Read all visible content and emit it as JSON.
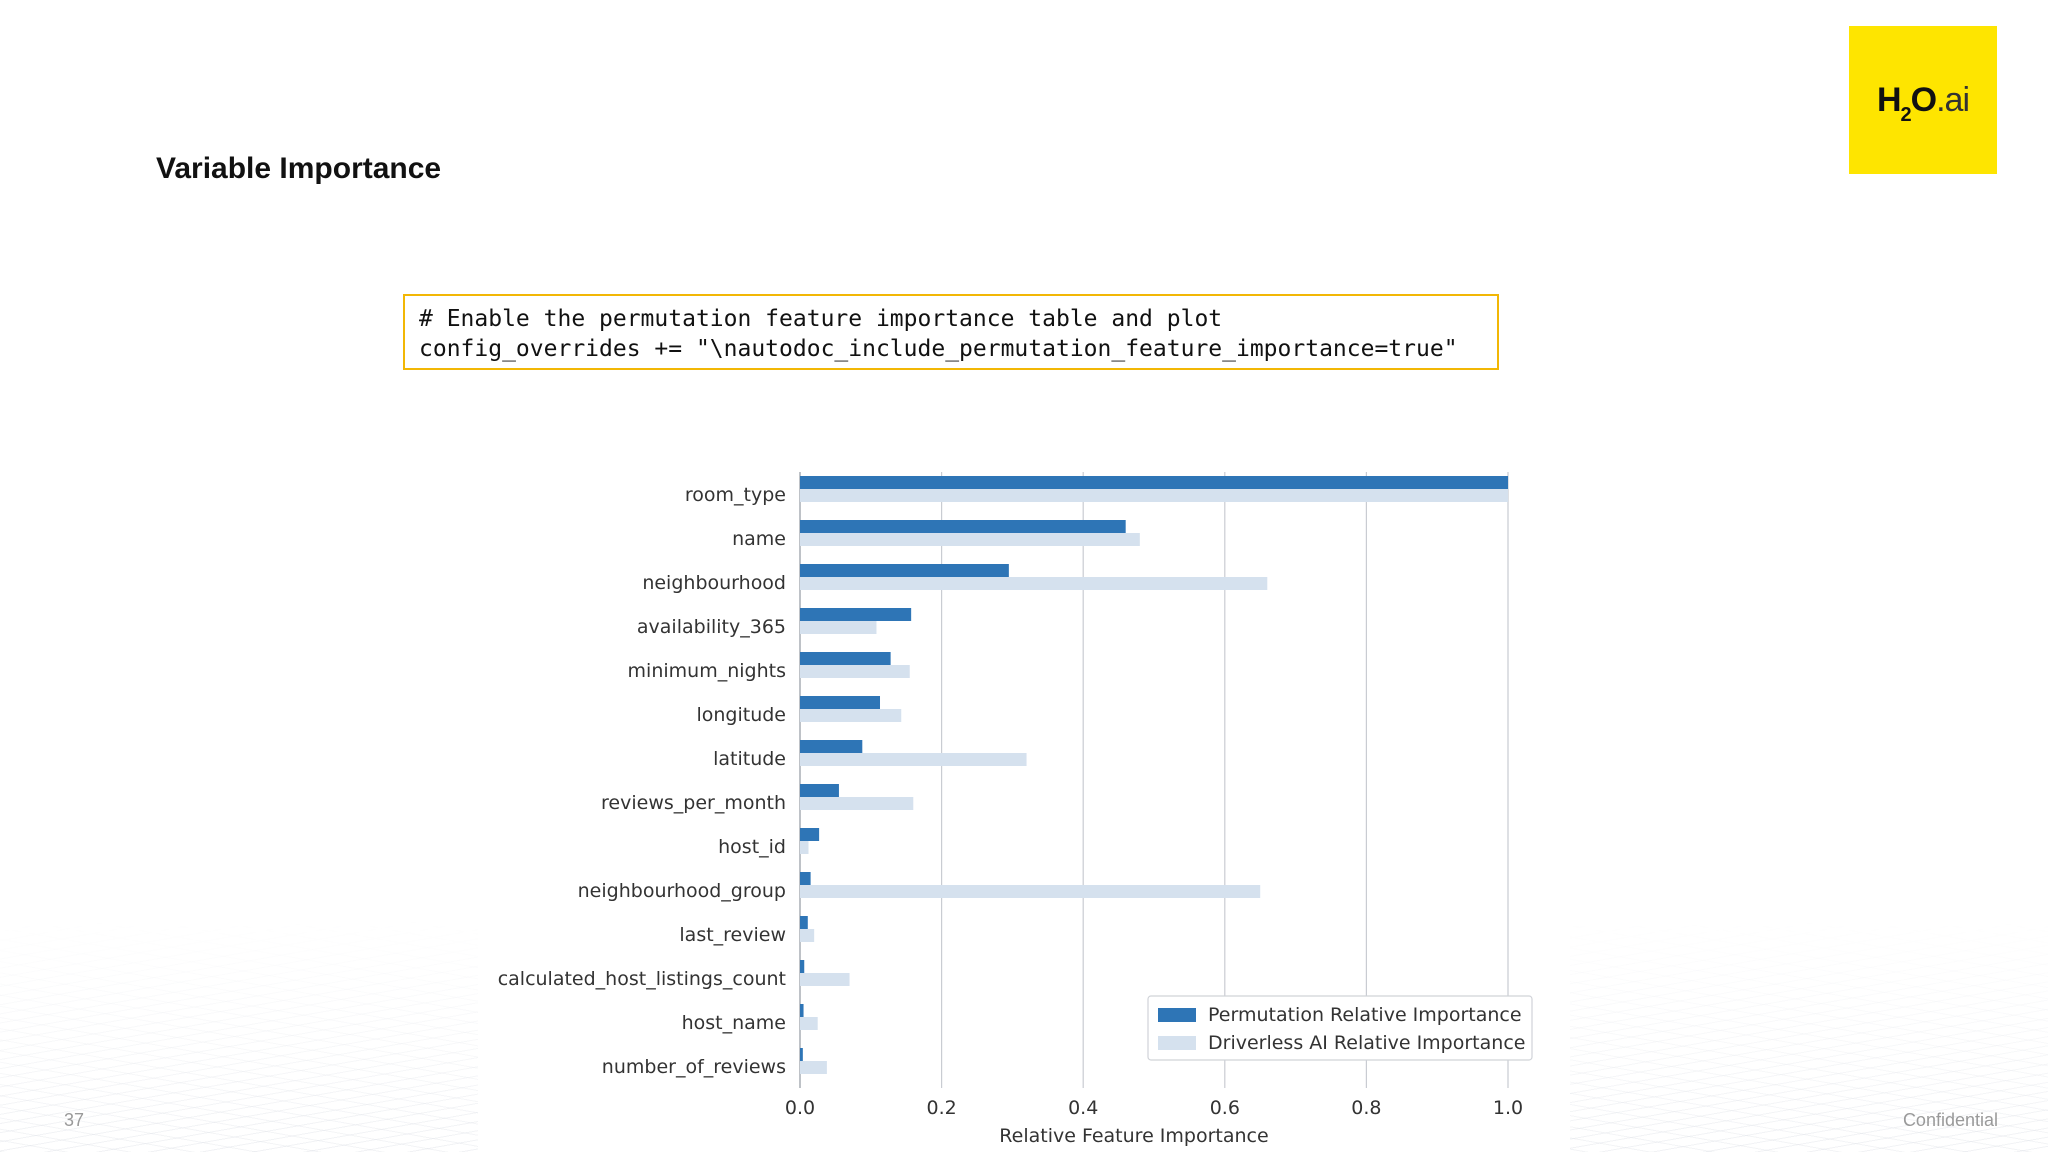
{
  "slide": {
    "title": "Variable Importance",
    "page_number": "37",
    "confidential": "Confidential",
    "logo": {
      "main": "H",
      "subscript": "2",
      "o": "O",
      "suffix": ".ai",
      "color": "#fee500"
    }
  },
  "code": {
    "line1": "# Enable the permutation feature importance table and plot",
    "line2": "config_overrides += \"\\nautodoc_include_permutation_feature_importance=true\"",
    "border_color": "#f2b705"
  },
  "chart_data": {
    "type": "bar",
    "orientation": "horizontal",
    "categories": [
      "room_type",
      "name",
      "neighbourhood",
      "availability_365",
      "minimum_nights",
      "longitude",
      "latitude",
      "reviews_per_month",
      "host_id",
      "neighbourhood_group",
      "last_review",
      "calculated_host_listings_count",
      "host_name",
      "number_of_reviews"
    ],
    "series": [
      {
        "name": "Permutation Relative Importance",
        "color": "#2e75b6",
        "values": [
          1.0,
          0.46,
          0.295,
          0.157,
          0.128,
          0.113,
          0.088,
          0.055,
          0.027,
          0.015,
          0.011,
          0.006,
          0.005,
          0.004
        ]
      },
      {
        "name": "Driverless AI Relative Importance",
        "color": "#d5e1ee",
        "values": [
          1.0,
          0.48,
          0.66,
          0.108,
          0.155,
          0.143,
          0.32,
          0.16,
          0.012,
          0.65,
          0.02,
          0.07,
          0.025,
          0.038
        ]
      }
    ],
    "title": "",
    "xlabel": "Relative Feature Importance",
    "ylabel": "",
    "xlim": [
      0,
      1.0
    ],
    "xticks": [
      "0.0",
      "0.2",
      "0.4",
      "0.6",
      "0.8",
      "1.0"
    ],
    "grid": "vertical",
    "legend_position": "bottom-right"
  }
}
